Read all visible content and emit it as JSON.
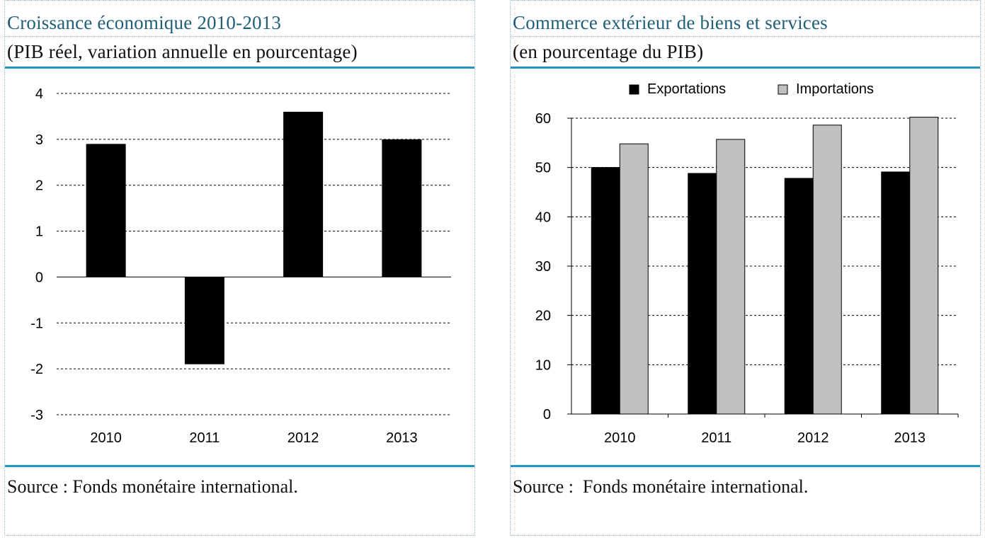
{
  "left": {
    "title": "Croissance économique 2010-2013",
    "subtitle": "(PIB réel, variation annuelle en pourcentage)",
    "source": "Source : Fonds monétaire international."
  },
  "right": {
    "title": "Commerce extérieur de biens et services",
    "subtitle": "(en pourcentage du PIB)",
    "source": "Source :  Fonds monétaire international."
  },
  "chart_data": [
    {
      "type": "bar",
      "title": "Croissance économique 2010-2013",
      "subtitle": "(PIB réel, variation annuelle en pourcentage)",
      "categories": [
        "2010",
        "2011",
        "2012",
        "2013"
      ],
      "values": [
        2.9,
        -1.9,
        3.6,
        3.0
      ],
      "ylim": [
        -3,
        4
      ],
      "yticks": [
        4,
        3,
        2,
        1,
        0,
        -1,
        -2,
        -3
      ],
      "grid": "dashed horizontal",
      "colors": [
        "#000000"
      ]
    },
    {
      "type": "bar",
      "title": "Commerce extérieur de biens et services",
      "subtitle": "(en pourcentage du PIB)",
      "categories": [
        "2010",
        "2011",
        "2012",
        "2013"
      ],
      "series": [
        {
          "name": "Exportations",
          "values": [
            50.0,
            48.8,
            47.8,
            49.1
          ],
          "color": "#000000"
        },
        {
          "name": "Importations",
          "values": [
            54.8,
            55.7,
            58.6,
            60.2
          ],
          "color": "#c0c0c0"
        }
      ],
      "ylim": [
        0,
        60
      ],
      "yticks": [
        60,
        50,
        40,
        30,
        20,
        10,
        0
      ],
      "grid": "dashed horizontal",
      "legend": "top"
    }
  ]
}
